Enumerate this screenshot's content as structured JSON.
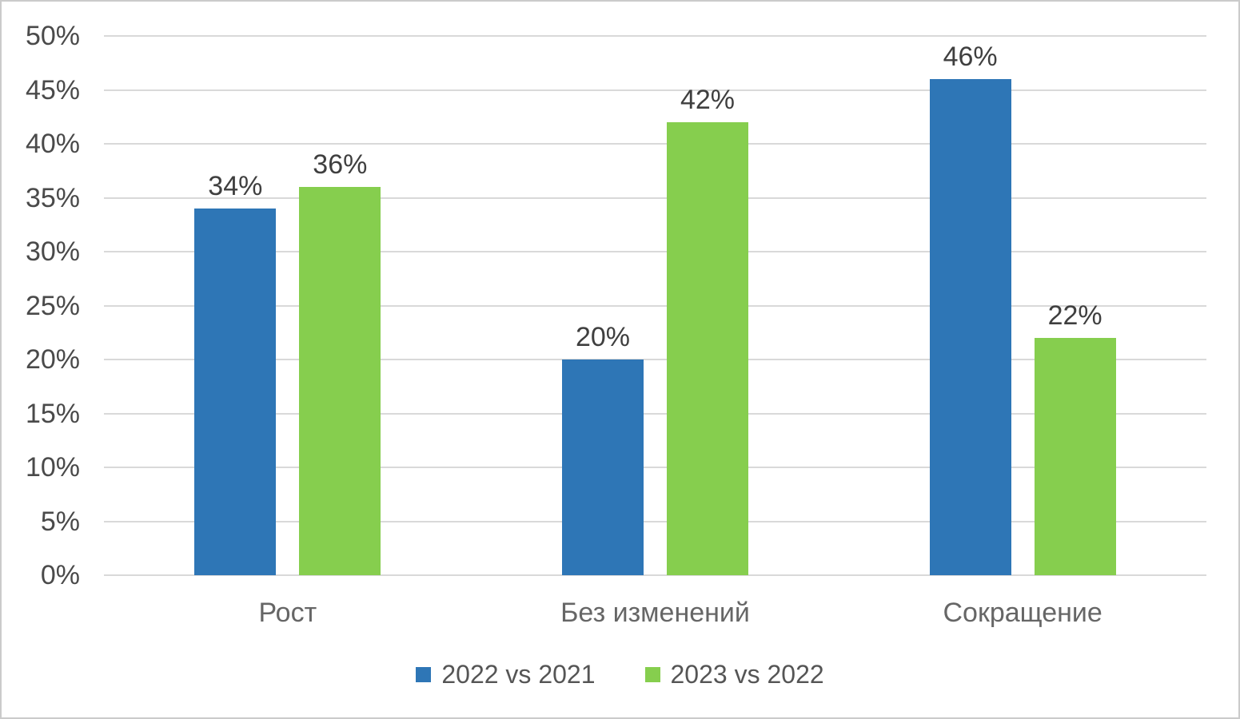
{
  "chart_data": {
    "type": "bar",
    "title": "",
    "xlabel": "",
    "ylabel": "",
    "categories": [
      "Рост",
      "Без изменений",
      "Сокращение"
    ],
    "series": [
      {
        "name": "2022 vs 2021",
        "color": "#2E76B6",
        "values": [
          34,
          20,
          46
        ]
      },
      {
        "name": "2023 vs 2022",
        "color": "#86CE4E",
        "values": [
          36,
          42,
          22
        ]
      }
    ],
    "value_suffix": "%",
    "ylim": [
      0,
      50
    ],
    "y_tick_step": 5,
    "y_ticks": [
      "0%",
      "5%",
      "10%",
      "15%",
      "20%",
      "25%",
      "30%",
      "35%",
      "40%",
      "45%",
      "50%"
    ],
    "grid": true,
    "legend_position": "bottom"
  },
  "colors": {
    "gridline": "#d9d9d9",
    "frame_border": "#cbcbcb",
    "data_label_text": "#3f3f3f",
    "axis_tick_text": "#4a4a4a",
    "category_text": "#666666",
    "legend_text": "#555555",
    "background": "#ffffff"
  }
}
